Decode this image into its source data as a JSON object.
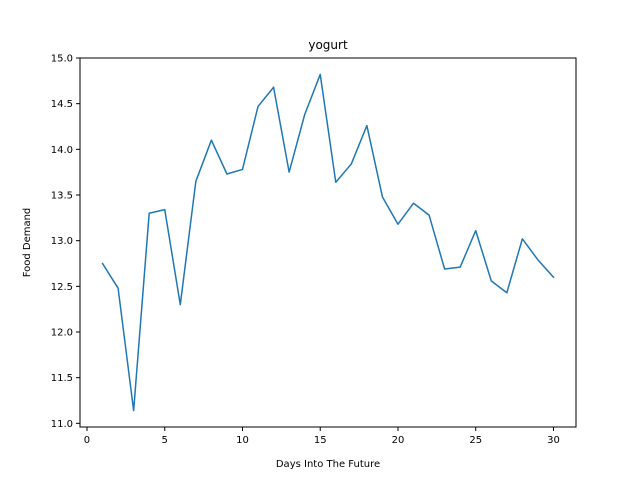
{
  "chart_data": {
    "type": "line",
    "title": "yogurt",
    "xlabel": "Days Into The Future",
    "ylabel": "Food Demand",
    "xlim": [
      -0.45,
      31.45
    ],
    "ylim": [
      10.96,
      15.0
    ],
    "xticks": [
      0,
      5,
      10,
      15,
      20,
      25,
      30
    ],
    "xtick_labels": [
      "0",
      "5",
      "10",
      "15",
      "20",
      "25",
      "30"
    ],
    "yticks": [
      11.0,
      11.5,
      12.0,
      12.5,
      13.0,
      13.5,
      14.0,
      14.5,
      15.0
    ],
    "ytick_labels": [
      "11.0",
      "11.5",
      "12.0",
      "12.5",
      "13.0",
      "13.5",
      "14.0",
      "14.5",
      "15.0"
    ],
    "grid": false,
    "series": [
      {
        "color": "#1f77b4",
        "x": [
          1,
          2,
          3,
          4,
          5,
          6,
          7,
          8,
          9,
          10,
          11,
          12,
          13,
          14,
          15,
          16,
          17,
          18,
          19,
          20,
          21,
          22,
          23,
          24,
          25,
          26,
          27,
          28,
          29,
          30
        ],
        "values": [
          12.75,
          12.48,
          11.14,
          13.3,
          13.34,
          12.3,
          13.65,
          14.1,
          13.73,
          13.78,
          14.47,
          14.68,
          13.75,
          14.38,
          14.82,
          13.64,
          13.84,
          14.26,
          13.48,
          13.18,
          13.41,
          13.28,
          12.69,
          12.71,
          13.11,
          12.56,
          12.43,
          13.02,
          12.79,
          12.6
        ]
      }
    ]
  }
}
